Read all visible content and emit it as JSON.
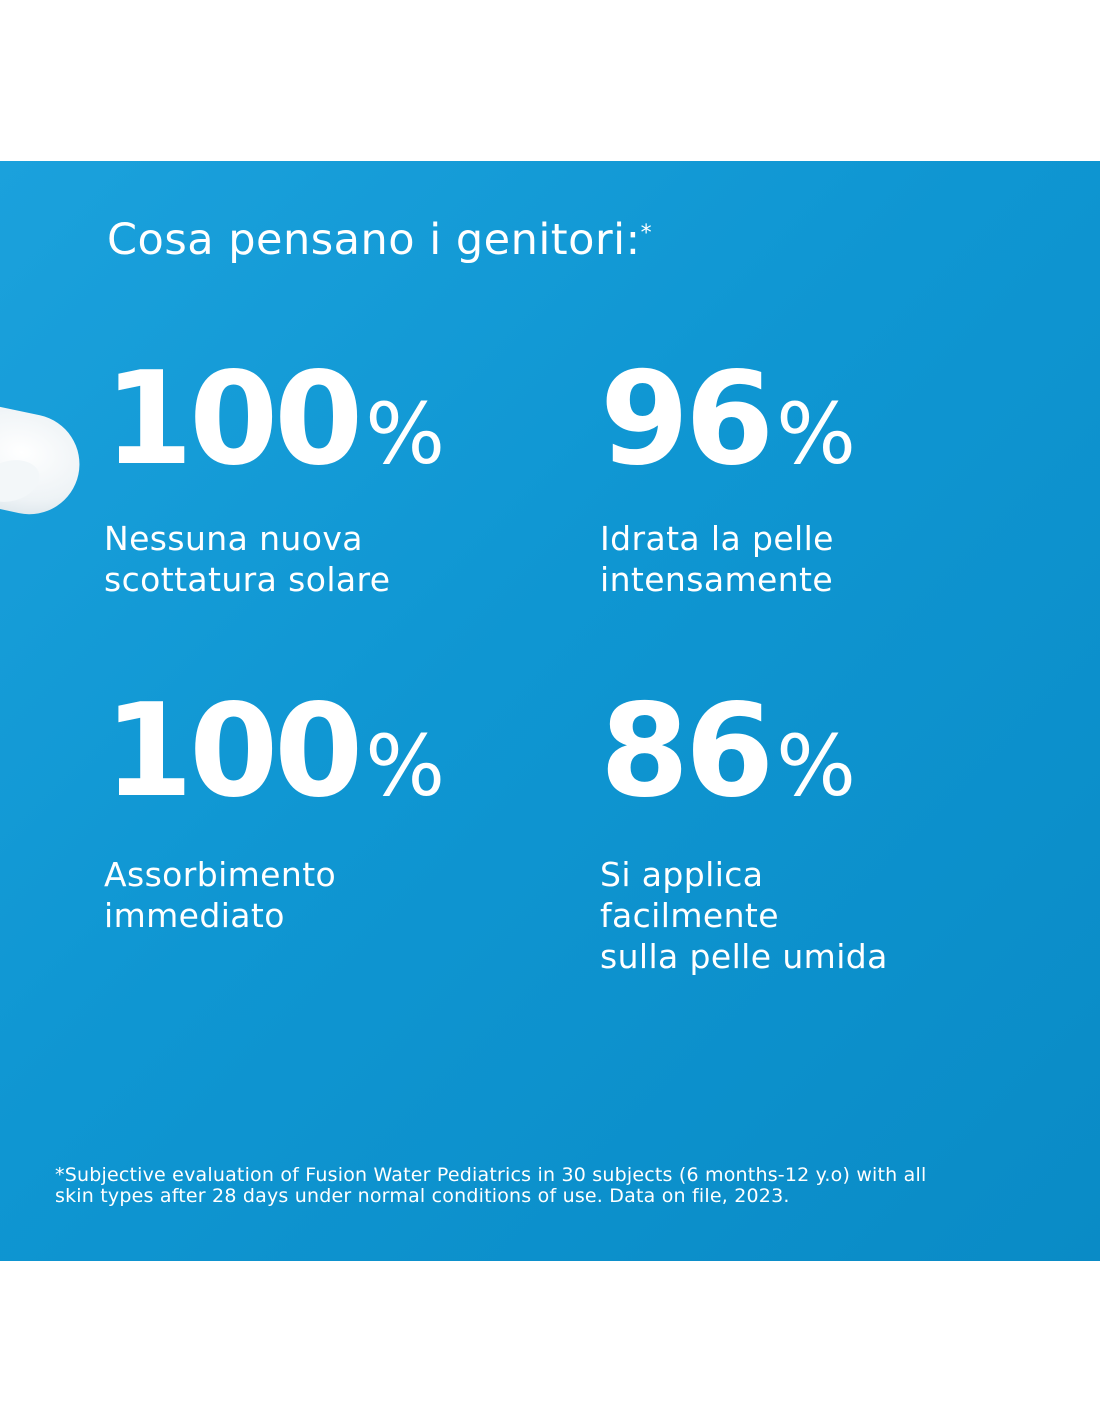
{
  "heading": {
    "text": "Cosa pensano i genitori:",
    "asterisk": "*"
  },
  "stats": [
    {
      "number": "100",
      "unit": "%",
      "label_lines": [
        "Nessuna nuova",
        "scottatura solare"
      ]
    },
    {
      "number": "96",
      "unit": "%",
      "label_lines": [
        "Idrata la pelle",
        "intensamente"
      ]
    },
    {
      "number": "100",
      "unit": "%",
      "label_lines": [
        "Assorbimento",
        "immediato"
      ]
    },
    {
      "number": "86",
      "unit": "%",
      "label_lines": [
        "Si applica",
        "facilmente",
        "sulla pelle umida"
      ]
    }
  ],
  "footnote": {
    "line1": "*Subjective evaluation of Fusion Water Pediatrics in 30 subjects (6 months-12 y.o) with all",
    "line2": "skin types after 28 days under normal conditions of use. Data on file, 2023."
  },
  "colors": {
    "panel_background": "#1296d3",
    "text": "#ffffff",
    "page_background": "#ffffff"
  }
}
